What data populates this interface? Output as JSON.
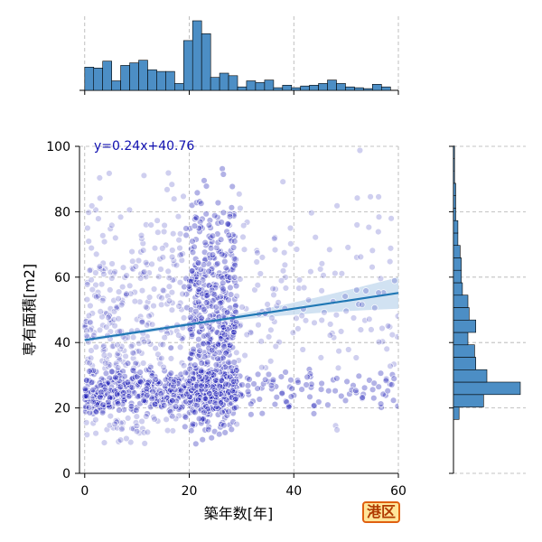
{
  "chart_data": [
    {
      "type": "scatter",
      "xlabel": "築年数[年]",
      "ylabel": "専有面積[m2]",
      "xlim": [
        -1,
        60
      ],
      "ylim": [
        0,
        100
      ],
      "xticks": [
        0,
        20,
        40,
        60
      ],
      "yticks": [
        0,
        20,
        40,
        60,
        80,
        100
      ],
      "grid": true,
      "equation": "y=0.24x+40.76",
      "regression": {
        "slope": 0.24,
        "intercept": 40.76
      },
      "point_color": "#1010b0",
      "line_color": "#1f77b4",
      "band_color": "#c6dbef"
    },
    {
      "type": "bar",
      "subtype": "histogram",
      "axis": "x",
      "bin_start": 0,
      "bin_width": 1.72,
      "counts": [
        27,
        26,
        34,
        11,
        29,
        32,
        35,
        24,
        22,
        22,
        8,
        58,
        81,
        66,
        15,
        20,
        17,
        4,
        11,
        9,
        12,
        3,
        6,
        3,
        5,
        6,
        8,
        12,
        8,
        4,
        3,
        2,
        7,
        4
      ],
      "fill": "#4c8ec5"
    },
    {
      "type": "bar",
      "subtype": "histogram",
      "axis": "y",
      "bin_start": 16.5,
      "bin_width": 3.8,
      "counts": [
        5,
        27,
        60,
        30,
        20,
        19,
        13,
        20,
        14,
        13,
        8,
        7,
        7,
        6,
        4,
        4,
        2,
        2,
        2,
        1,
        1,
        1
      ],
      "fill": "#4c8ec5"
    }
  ],
  "badge": {
    "label": "港区",
    "border": "#e06010",
    "background": "#ffe59a",
    "text_color": "#b03a00"
  }
}
